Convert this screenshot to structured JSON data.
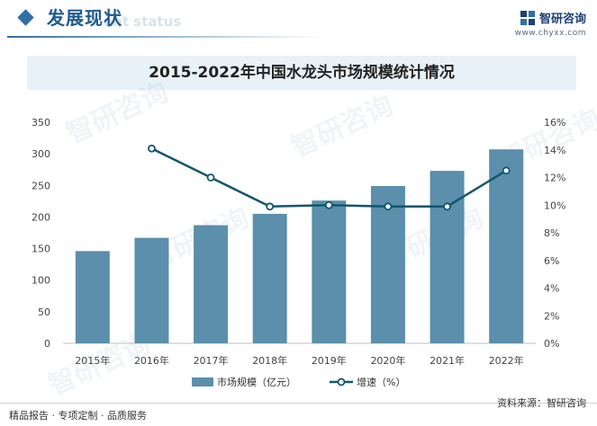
{
  "header": {
    "title_cn": "发展现状",
    "title_en": "ent status",
    "brand_name": "智研咨询",
    "brand_url": "www.chyxx.com"
  },
  "colors": {
    "bar": "#5b8fab",
    "line": "#12566f",
    "title_bar_bg": "#e8f1f8",
    "accent": "#2f6fa7"
  },
  "watermark_text": "智研咨询",
  "chart_data": {
    "type": "bar",
    "title": "2015-2022年中国水龙头市场规模统计情况",
    "categories": [
      "2015年",
      "2016年",
      "2017年",
      "2018年",
      "2019年",
      "2020年",
      "2021年",
      "2022年"
    ],
    "series": [
      {
        "name": "市场规模（亿元）",
        "type": "bar",
        "axis": "left",
        "values": [
          146,
          167,
          187,
          205,
          226,
          249,
          273,
          307
        ]
      },
      {
        "name": "增速（%）",
        "type": "line",
        "axis": "right",
        "values": [
          null,
          14.1,
          12.0,
          9.9,
          10.0,
          9.9,
          9.9,
          12.5
        ]
      }
    ],
    "y_left": {
      "min": 0,
      "max": 350,
      "step": 50,
      "ticks": [
        "0",
        "50",
        "100",
        "150",
        "200",
        "250",
        "300",
        "350"
      ]
    },
    "y_right": {
      "min": 0,
      "max": 16,
      "step": 2,
      "ticks": [
        "0%",
        "2%",
        "4%",
        "6%",
        "8%",
        "10%",
        "12%",
        "14%",
        "16%"
      ]
    },
    "legend_position": "bottom",
    "grid": false
  },
  "footer": {
    "left": "精品报告 · 专项定制 · 品质服务",
    "source": "资料来源：智研咨询"
  }
}
